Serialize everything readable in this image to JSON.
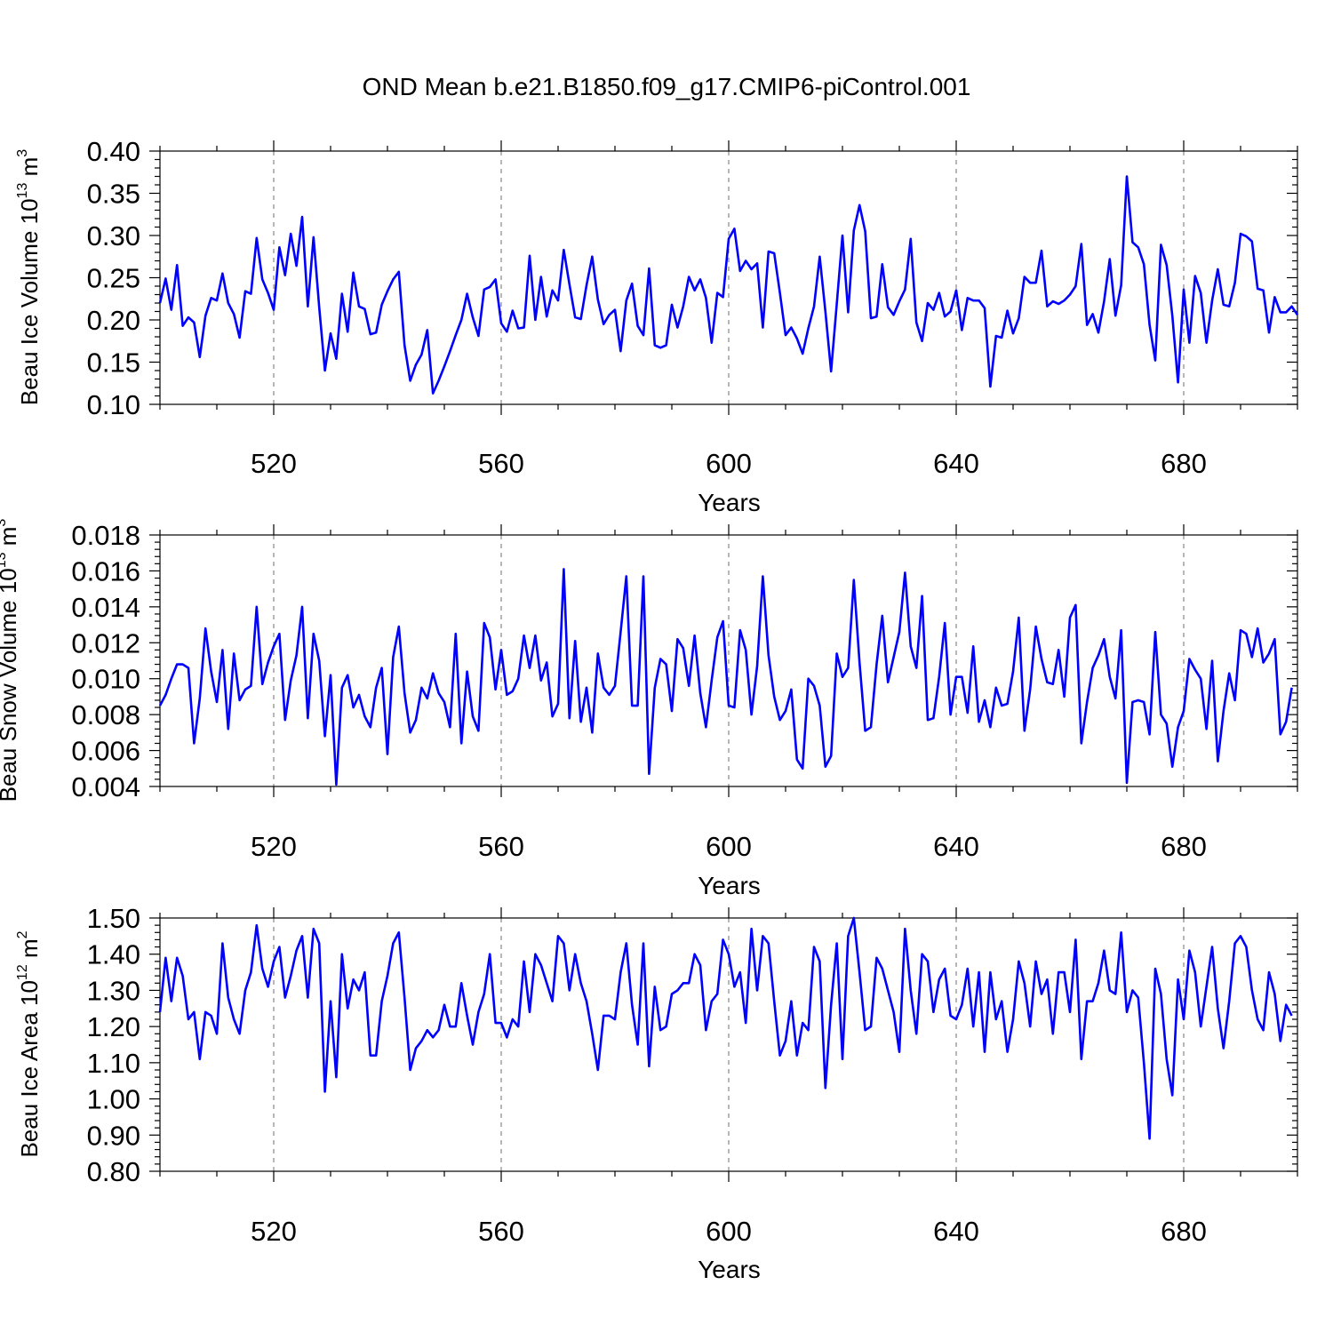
{
  "title": "OND Mean b.e21.B1850.f09_g17.CMIP6-piControl.001",
  "colors": {
    "series": "#0000ff",
    "grid": "#888888",
    "axes": "#000000"
  },
  "chart_data": [
    {
      "type": "line",
      "ylabel": {
        "text": "Beau Ice Volume 10",
        "exp": "13",
        "unit": " m",
        "unit_exp": "3"
      },
      "xlabel": "Years",
      "xlim": [
        500,
        700
      ],
      "ylim": [
        0.1,
        0.4
      ],
      "grid": "x-dashed",
      "xticks": [
        520,
        560,
        600,
        640,
        680
      ],
      "xtick_labels": [
        "520",
        "560",
        "600",
        "640",
        "680"
      ],
      "yticks": [
        0.1,
        0.15,
        0.2,
        0.25,
        0.3,
        0.35,
        0.4
      ],
      "ytick_labels": [
        "0.10",
        "0.15",
        "0.20",
        "0.25",
        "0.30",
        "0.35",
        "0.40"
      ],
      "x_start": 500,
      "x_step": 1,
      "values": [
        0.22,
        0.249,
        0.212,
        0.265,
        0.193,
        0.203,
        0.197,
        0.156,
        0.205,
        0.226,
        0.223,
        0.255,
        0.22,
        0.207,
        0.179,
        0.234,
        0.231,
        0.297,
        0.248,
        0.232,
        0.212,
        0.286,
        0.253,
        0.302,
        0.264,
        0.322,
        0.216,
        0.298,
        0.215,
        0.14,
        0.184,
        0.154,
        0.231,
        0.186,
        0.256,
        0.216,
        0.213,
        0.183,
        0.185,
        0.218,
        0.234,
        0.248,
        0.257,
        0.17,
        0.128,
        0.147,
        0.159,
        0.188,
        0.113,
        0.128,
        0.145,
        0.163,
        0.182,
        0.2,
        0.231,
        0.203,
        0.181,
        0.236,
        0.239,
        0.248,
        0.196,
        0.186,
        0.211,
        0.19,
        0.191,
        0.276,
        0.2,
        0.251,
        0.204,
        0.235,
        0.223,
        0.283,
        0.242,
        0.203,
        0.201,
        0.241,
        0.275,
        0.224,
        0.195,
        0.206,
        0.212,
        0.163,
        0.223,
        0.243,
        0.193,
        0.182,
        0.261,
        0.17,
        0.167,
        0.17,
        0.218,
        0.191,
        0.216,
        0.251,
        0.235,
        0.248,
        0.226,
        0.173,
        0.232,
        0.227,
        0.296,
        0.308,
        0.258,
        0.27,
        0.26,
        0.267,
        0.191,
        0.281,
        0.279,
        0.232,
        0.182,
        0.191,
        0.178,
        0.16,
        0.19,
        0.216,
        0.275,
        0.21,
        0.139,
        0.219,
        0.3,
        0.209,
        0.306,
        0.336,
        0.305,
        0.202,
        0.204,
        0.266,
        0.215,
        0.206,
        0.222,
        0.236,
        0.296,
        0.197,
        0.175,
        0.22,
        0.212,
        0.232,
        0.204,
        0.21,
        0.235,
        0.188,
        0.226,
        0.223,
        0.223,
        0.214,
        0.121,
        0.181,
        0.179,
        0.211,
        0.184,
        0.202,
        0.251,
        0.244,
        0.244,
        0.282,
        0.216,
        0.222,
        0.219,
        0.223,
        0.23,
        0.24,
        0.29,
        0.194,
        0.207,
        0.185,
        0.222,
        0.272,
        0.205,
        0.241,
        0.37,
        0.292,
        0.286,
        0.266,
        0.194,
        0.152,
        0.289,
        0.265,
        0.205,
        0.126,
        0.236,
        0.173,
        0.252,
        0.232,
        0.173,
        0.223,
        0.26,
        0.218,
        0.216,
        0.244,
        0.302,
        0.299,
        0.293,
        0.237,
        0.235,
        0.185,
        0.227,
        0.209,
        0.209,
        0.216,
        0.206
      ]
    },
    {
      "type": "line",
      "ylabel": {
        "text": "Beau Snow Volume 10",
        "exp": "13",
        "unit": " m",
        "unit_exp": "3"
      },
      "xlabel": "Years",
      "xlim": [
        500,
        700
      ],
      "ylim": [
        0.004,
        0.018
      ],
      "grid": "x-dashed",
      "xticks": [
        520,
        560,
        600,
        640,
        680
      ],
      "xtick_labels": [
        "520",
        "560",
        "600",
        "640",
        "680"
      ],
      "yticks": [
        0.004,
        0.006,
        0.008,
        0.01,
        0.012,
        0.014,
        0.016,
        0.018
      ],
      "ytick_labels": [
        "0.004",
        "0.006",
        "0.008",
        "0.010",
        "0.012",
        "0.014",
        "0.016",
        "0.018"
      ],
      "x_start": 500,
      "x_step": 1,
      "values": [
        0.0085,
        0.0091,
        0.01,
        0.0108,
        0.0108,
        0.0106,
        0.0064,
        0.0089,
        0.0128,
        0.0104,
        0.0087,
        0.0116,
        0.0072,
        0.0114,
        0.0088,
        0.0094,
        0.0096,
        0.014,
        0.0097,
        0.0109,
        0.0118,
        0.0125,
        0.0077,
        0.0099,
        0.0113,
        0.014,
        0.0078,
        0.0125,
        0.011,
        0.0068,
        0.0102,
        0.0041,
        0.0095,
        0.0102,
        0.0084,
        0.0091,
        0.0079,
        0.0073,
        0.0095,
        0.0106,
        0.0058,
        0.0112,
        0.0129,
        0.0092,
        0.007,
        0.0077,
        0.0095,
        0.0089,
        0.0103,
        0.0092,
        0.0087,
        0.0073,
        0.0125,
        0.0064,
        0.0104,
        0.0079,
        0.0071,
        0.0131,
        0.0123,
        0.0094,
        0.0116,
        0.0091,
        0.0093,
        0.01,
        0.0124,
        0.0106,
        0.0124,
        0.0099,
        0.0109,
        0.0079,
        0.0086,
        0.0161,
        0.0078,
        0.0121,
        0.0076,
        0.0095,
        0.007,
        0.0114,
        0.0095,
        0.0091,
        0.0096,
        0.0126,
        0.0157,
        0.0085,
        0.0085,
        0.0157,
        0.0047,
        0.0095,
        0.0111,
        0.0108,
        0.0082,
        0.0122,
        0.0117,
        0.0096,
        0.0124,
        0.0092,
        0.0073,
        0.0099,
        0.0123,
        0.0132,
        0.0085,
        0.0084,
        0.0127,
        0.0116,
        0.008,
        0.0107,
        0.0157,
        0.0113,
        0.009,
        0.0077,
        0.0082,
        0.0094,
        0.0055,
        0.005,
        0.01,
        0.0096,
        0.0085,
        0.0051,
        0.0057,
        0.0114,
        0.0101,
        0.0106,
        0.0155,
        0.0109,
        0.0071,
        0.0073,
        0.0108,
        0.0135,
        0.0098,
        0.0112,
        0.0126,
        0.0159,
        0.0118,
        0.0106,
        0.0146,
        0.0077,
        0.0078,
        0.0101,
        0.0131,
        0.008,
        0.0101,
        0.0101,
        0.0081,
        0.0118,
        0.0076,
        0.0088,
        0.0073,
        0.0095,
        0.0085,
        0.0086,
        0.0104,
        0.0134,
        0.0071,
        0.0094,
        0.0129,
        0.0111,
        0.0098,
        0.0097,
        0.0116,
        0.009,
        0.0134,
        0.0141,
        0.0064,
        0.0087,
        0.0106,
        0.0113,
        0.0122,
        0.0101,
        0.0089,
        0.0127,
        0.0042,
        0.0087,
        0.0088,
        0.0087,
        0.0069,
        0.0126,
        0.008,
        0.0075,
        0.0051,
        0.0073,
        0.0082,
        0.0111,
        0.0105,
        0.01,
        0.0072,
        0.011,
        0.0054,
        0.0082,
        0.0103,
        0.0088,
        0.0127,
        0.0125,
        0.0112,
        0.0128,
        0.0109,
        0.0114,
        0.0122,
        0.0069,
        0.0076,
        0.0095
      ]
    },
    {
      "type": "line",
      "ylabel": {
        "text": "Beau Ice Area 10",
        "exp": "12",
        "unit": " m",
        "unit_exp": "2"
      },
      "xlabel": "Years",
      "xlim": [
        500,
        700
      ],
      "ylim": [
        0.8,
        1.5
      ],
      "grid": "x-dashed",
      "xticks": [
        520,
        560,
        600,
        640,
        680
      ],
      "xtick_labels": [
        "520",
        "560",
        "600",
        "640",
        "680"
      ],
      "yticks": [
        0.8,
        0.9,
        1.0,
        1.1,
        1.2,
        1.3,
        1.4,
        1.5
      ],
      "ytick_labels": [
        "0.80",
        "0.90",
        "1.00",
        "1.10",
        "1.20",
        "1.30",
        "1.40",
        "1.50"
      ],
      "x_start": 500,
      "x_step": 1,
      "values": [
        1.24,
        1.39,
        1.27,
        1.39,
        1.34,
        1.22,
        1.24,
        1.11,
        1.24,
        1.23,
        1.18,
        1.43,
        1.28,
        1.22,
        1.18,
        1.3,
        1.35,
        1.48,
        1.36,
        1.31,
        1.38,
        1.42,
        1.28,
        1.34,
        1.41,
        1.45,
        1.28,
        1.47,
        1.43,
        1.02,
        1.27,
        1.06,
        1.4,
        1.25,
        1.33,
        1.3,
        1.35,
        1.12,
        1.12,
        1.27,
        1.34,
        1.43,
        1.46,
        1.28,
        1.08,
        1.14,
        1.16,
        1.19,
        1.17,
        1.19,
        1.26,
        1.2,
        1.2,
        1.32,
        1.23,
        1.15,
        1.24,
        1.29,
        1.4,
        1.21,
        1.21,
        1.17,
        1.22,
        1.2,
        1.38,
        1.24,
        1.4,
        1.37,
        1.32,
        1.27,
        1.45,
        1.43,
        1.3,
        1.4,
        1.32,
        1.27,
        1.18,
        1.08,
        1.23,
        1.23,
        1.22,
        1.35,
        1.43,
        1.26,
        1.15,
        1.43,
        1.09,
        1.31,
        1.19,
        1.2,
        1.29,
        1.3,
        1.32,
        1.32,
        1.4,
        1.37,
        1.19,
        1.27,
        1.29,
        1.44,
        1.4,
        1.31,
        1.35,
        1.21,
        1.47,
        1.3,
        1.45,
        1.43,
        1.27,
        1.12,
        1.16,
        1.27,
        1.12,
        1.21,
        1.19,
        1.42,
        1.38,
        1.03,
        1.26,
        1.43,
        1.11,
        1.45,
        1.5,
        1.35,
        1.19,
        1.2,
        1.39,
        1.36,
        1.3,
        1.24,
        1.13,
        1.47,
        1.3,
        1.18,
        1.4,
        1.38,
        1.24,
        1.33,
        1.36,
        1.23,
        1.22,
        1.26,
        1.36,
        1.2,
        1.35,
        1.13,
        1.35,
        1.22,
        1.27,
        1.13,
        1.22,
        1.38,
        1.32,
        1.2,
        1.38,
        1.29,
        1.33,
        1.18,
        1.35,
        1.35,
        1.24,
        1.44,
        1.11,
        1.27,
        1.27,
        1.32,
        1.41,
        1.3,
        1.29,
        1.46,
        1.24,
        1.3,
        1.28,
        1.1,
        0.89,
        1.36,
        1.29,
        1.11,
        1.01,
        1.33,
        1.22,
        1.41,
        1.35,
        1.2,
        1.31,
        1.42,
        1.25,
        1.14,
        1.27,
        1.43,
        1.45,
        1.42,
        1.3,
        1.22,
        1.19,
        1.35,
        1.29,
        1.16,
        1.26,
        1.23
      ]
    }
  ]
}
